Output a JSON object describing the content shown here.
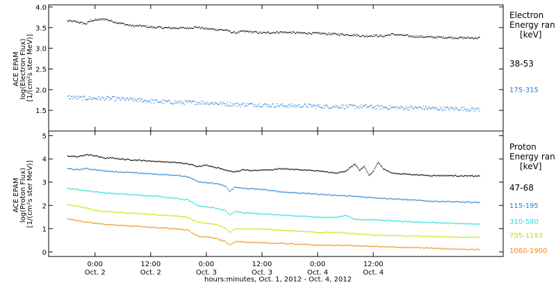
{
  "chart_data": [
    {
      "type": "scatter",
      "panel": "electron",
      "ylabel_lines": [
        "ACE EPAM",
        "log(Electron Flux)",
        "[1/(cm²s ster MeV)]"
      ],
      "ylim": [
        1.0,
        4.05
      ],
      "y_ticks": [
        1.0,
        1.5,
        2.0,
        2.5,
        3.0,
        3.5,
        4.0
      ],
      "y_tick_labels": [
        "",
        "1.5",
        "2.0",
        "2.5",
        "3.0",
        "3.5",
        "4.0"
      ],
      "legend_title_lines": [
        "Electron",
        "Energy ran",
        "[keV]"
      ],
      "series": [
        {
          "name": "38-53",
          "color": "#000000",
          "points": [
            [
              -6,
              3.67
            ],
            [
              -4,
              3.65
            ],
            [
              -2,
              3.6
            ],
            [
              -1,
              3.68
            ],
            [
              1,
              3.7
            ],
            [
              2,
              3.72
            ],
            [
              4,
              3.65
            ],
            [
              6,
              3.6
            ],
            [
              8,
              3.55
            ],
            [
              10,
              3.55
            ],
            [
              12,
              3.52
            ],
            [
              16,
              3.5
            ],
            [
              20,
              3.5
            ],
            [
              22,
              3.52
            ],
            [
              24,
              3.48
            ],
            [
              28,
              3.45
            ],
            [
              30,
              3.38
            ],
            [
              32,
              3.42
            ],
            [
              36,
              3.38
            ],
            [
              40,
              3.4
            ],
            [
              44,
              3.38
            ],
            [
              48,
              3.37
            ],
            [
              52,
              3.35
            ],
            [
              56,
              3.33
            ],
            [
              58,
              3.3
            ],
            [
              60,
              3.32
            ],
            [
              62,
              3.3
            ],
            [
              64,
              3.35
            ],
            [
              68,
              3.3
            ],
            [
              72,
              3.28
            ],
            [
              76,
              3.27
            ],
            [
              80,
              3.26
            ],
            [
              83,
              3.26
            ]
          ]
        },
        {
          "name": "175-315",
          "color": "#1e7fd6",
          "points": [
            [
              -6,
              1.83
            ],
            [
              -2,
              1.8
            ],
            [
              2,
              1.8
            ],
            [
              6,
              1.78
            ],
            [
              10,
              1.75
            ],
            [
              14,
              1.72
            ],
            [
              18,
              1.7
            ],
            [
              22,
              1.7
            ],
            [
              26,
              1.68
            ],
            [
              30,
              1.65
            ],
            [
              34,
              1.65
            ],
            [
              38,
              1.63
            ],
            [
              42,
              1.62
            ],
            [
              46,
              1.62
            ],
            [
              50,
              1.6
            ],
            [
              54,
              1.6
            ],
            [
              58,
              1.6
            ],
            [
              62,
              1.58
            ],
            [
              66,
              1.57
            ],
            [
              70,
              1.57
            ],
            [
              74,
              1.55
            ],
            [
              78,
              1.55
            ],
            [
              83,
              1.53
            ]
          ]
        }
      ]
    },
    {
      "type": "scatter",
      "panel": "proton",
      "ylabel_lines": [
        "ACE EPAM",
        "log(Proton Flux)",
        "[1/(cm²s ster MeV)]"
      ],
      "ylim": [
        -0.2,
        5.2
      ],
      "y_ticks": [
        0,
        1,
        2,
        3,
        4,
        5
      ],
      "y_tick_labels": [
        "0",
        "1",
        "2",
        "3",
        "4",
        "5"
      ],
      "legend_title_lines": [
        "Proton",
        "Energy ran",
        "[keV]"
      ],
      "series": [
        {
          "name": "47-68",
          "color": "#000000",
          "points": [
            [
              -6,
              4.15
            ],
            [
              -4,
              4.1
            ],
            [
              -2,
              4.2
            ],
            [
              0,
              4.15
            ],
            [
              2,
              4.05
            ],
            [
              4,
              4.05
            ],
            [
              6,
              4.0
            ],
            [
              10,
              3.95
            ],
            [
              14,
              3.9
            ],
            [
              18,
              3.85
            ],
            [
              20,
              3.8
            ],
            [
              22,
              3.7
            ],
            [
              24,
              3.75
            ],
            [
              26,
              3.65
            ],
            [
              28,
              3.55
            ],
            [
              30,
              3.45
            ],
            [
              32,
              3.55
            ],
            [
              34,
              3.5
            ],
            [
              36,
              3.55
            ],
            [
              38,
              3.55
            ],
            [
              40,
              3.6
            ],
            [
              44,
              3.55
            ],
            [
              48,
              3.5
            ],
            [
              52,
              3.4
            ],
            [
              54,
              3.5
            ],
            [
              56,
              3.8
            ],
            [
              57,
              3.5
            ],
            [
              58,
              3.7
            ],
            [
              59,
              3.3
            ],
            [
              60,
              3.5
            ],
            [
              61,
              3.9
            ],
            [
              62,
              3.6
            ],
            [
              64,
              3.4
            ],
            [
              68,
              3.35
            ],
            [
              72,
              3.3
            ],
            [
              76,
              3.3
            ],
            [
              80,
              3.28
            ],
            [
              83,
              3.28
            ]
          ]
        },
        {
          "name": "115-195",
          "color": "#1e7fd6",
          "points": [
            [
              -6,
              3.6
            ],
            [
              -4,
              3.55
            ],
            [
              -2,
              3.6
            ],
            [
              0,
              3.55
            ],
            [
              2,
              3.5
            ],
            [
              6,
              3.45
            ],
            [
              10,
              3.4
            ],
            [
              14,
              3.35
            ],
            [
              18,
              3.3
            ],
            [
              20,
              3.25
            ],
            [
              22,
              3.05
            ],
            [
              24,
              3.0
            ],
            [
              26,
              2.95
            ],
            [
              28,
              2.85
            ],
            [
              29,
              2.6
            ],
            [
              30,
              2.8
            ],
            [
              32,
              2.75
            ],
            [
              36,
              2.7
            ],
            [
              40,
              2.6
            ],
            [
              44,
              2.55
            ],
            [
              48,
              2.5
            ],
            [
              52,
              2.45
            ],
            [
              56,
              2.4
            ],
            [
              60,
              2.35
            ],
            [
              64,
              2.3
            ],
            [
              68,
              2.25
            ],
            [
              72,
              2.2
            ],
            [
              76,
              2.18
            ],
            [
              80,
              2.15
            ],
            [
              83,
              2.15
            ]
          ]
        },
        {
          "name": "310-580",
          "color": "#22e0d8",
          "points": [
            [
              -6,
              2.75
            ],
            [
              -4,
              2.7
            ],
            [
              -2,
              2.65
            ],
            [
              0,
              2.6
            ],
            [
              2,
              2.55
            ],
            [
              6,
              2.5
            ],
            [
              10,
              2.45
            ],
            [
              14,
              2.4
            ],
            [
              18,
              2.3
            ],
            [
              20,
              2.25
            ],
            [
              22,
              2.0
            ],
            [
              24,
              1.95
            ],
            [
              26,
              1.9
            ],
            [
              28,
              1.8
            ],
            [
              29,
              1.6
            ],
            [
              30,
              1.75
            ],
            [
              32,
              1.7
            ],
            [
              36,
              1.65
            ],
            [
              40,
              1.6
            ],
            [
              44,
              1.55
            ],
            [
              48,
              1.5
            ],
            [
              52,
              1.5
            ],
            [
              54,
              1.6
            ],
            [
              56,
              1.4
            ],
            [
              60,
              1.4
            ],
            [
              64,
              1.35
            ],
            [
              68,
              1.3
            ],
            [
              72,
              1.28
            ],
            [
              76,
              1.25
            ],
            [
              80,
              1.22
            ],
            [
              83,
              1.22
            ]
          ]
        },
        {
          "name": "795-1193",
          "color": "#c8e000",
          "points": [
            [
              -6,
              2.05
            ],
            [
              -4,
              2.0
            ],
            [
              -2,
              1.9
            ],
            [
              0,
              1.8
            ],
            [
              2,
              1.75
            ],
            [
              6,
              1.7
            ],
            [
              10,
              1.65
            ],
            [
              14,
              1.6
            ],
            [
              18,
              1.55
            ],
            [
              20,
              1.5
            ],
            [
              22,
              1.3
            ],
            [
              24,
              1.25
            ],
            [
              26,
              1.2
            ],
            [
              28,
              1.05
            ],
            [
              29,
              0.85
            ],
            [
              30,
              1.0
            ],
            [
              32,
              1.0
            ],
            [
              36,
              1.0
            ],
            [
              40,
              0.95
            ],
            [
              44,
              0.9
            ],
            [
              48,
              0.85
            ],
            [
              52,
              0.85
            ],
            [
              56,
              0.8
            ],
            [
              60,
              0.75
            ],
            [
              64,
              0.72
            ],
            [
              68,
              0.7
            ],
            [
              72,
              0.68
            ],
            [
              76,
              0.66
            ],
            [
              80,
              0.65
            ],
            [
              83,
              0.65
            ]
          ]
        },
        {
          "name": "1060-1900",
          "color": "#f08c10",
          "points": [
            [
              -6,
              1.45
            ],
            [
              -4,
              1.35
            ],
            [
              -2,
              1.3
            ],
            [
              0,
              1.25
            ],
            [
              2,
              1.2
            ],
            [
              6,
              1.15
            ],
            [
              10,
              1.1
            ],
            [
              14,
              1.05
            ],
            [
              18,
              1.0
            ],
            [
              20,
              0.95
            ],
            [
              22,
              0.7
            ],
            [
              24,
              0.65
            ],
            [
              26,
              0.6
            ],
            [
              28,
              0.45
            ],
            [
              29,
              0.3
            ],
            [
              30,
              0.45
            ],
            [
              32,
              0.45
            ],
            [
              36,
              0.4
            ],
            [
              40,
              0.38
            ],
            [
              44,
              0.35
            ],
            [
              48,
              0.3
            ],
            [
              52,
              0.3
            ],
            [
              56,
              0.28
            ],
            [
              60,
              0.25
            ],
            [
              64,
              0.22
            ],
            [
              68,
              0.2
            ],
            [
              72,
              0.18
            ],
            [
              76,
              0.15
            ],
            [
              80,
              0.12
            ],
            [
              83,
              0.12
            ]
          ]
        }
      ]
    }
  ],
  "x_axis": {
    "range": [
      -10,
      88
    ],
    "ticks": [
      {
        "x": 0,
        "label_time": "0:00",
        "label_date": "Oct. 2"
      },
      {
        "x": 12,
        "label_time": "12:00",
        "label_date": "Oct. 2"
      },
      {
        "x": 24,
        "label_time": "0:00",
        "label_date": "Oct. 3"
      },
      {
        "x": 36,
        "label_time": "12:00",
        "label_date": "Oct. 3"
      },
      {
        "x": 48,
        "label_time": "0:00",
        "label_date": "Oct. 4"
      },
      {
        "x": 60,
        "label_time": "12:00",
        "label_date": "Oct. 4"
      }
    ],
    "xlabel": "hours:minutes, Oct.  1, 2012 - Oct.  4, 2012"
  }
}
